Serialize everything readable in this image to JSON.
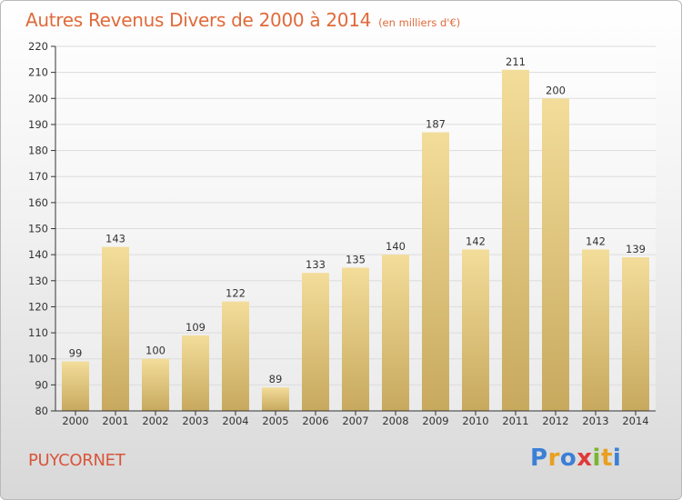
{
  "header": {
    "title": "Autres Revenus Divers de 2000 à 2014",
    "unit": "(en milliers d'€)"
  },
  "footer": {
    "commune": "PUYCORNET",
    "brand_letters": [
      {
        "char": "P",
        "color": "#3b7fd6"
      },
      {
        "char": "r",
        "color": "#e8a020"
      },
      {
        "char": "o",
        "color": "#3b7fd6"
      },
      {
        "char": "x",
        "color": "#e03a3a"
      },
      {
        "char": "i",
        "color": "#7ab530"
      },
      {
        "char": "t",
        "color": "#e8a020"
      },
      {
        "char": "i",
        "color": "#3b7fd6"
      }
    ]
  },
  "colors": {
    "bar_top": "#f3dd9a",
    "bar_bottom": "#c7a95e",
    "title": "#e06a3a",
    "grid": "#dcdcdc"
  },
  "chart_data": {
    "type": "bar",
    "title": "Autres Revenus Divers de 2000 à 2014",
    "subtitle": "(en milliers d'€)",
    "xlabel": "",
    "ylabel": "",
    "categories": [
      "2000",
      "2001",
      "2002",
      "2003",
      "2004",
      "2005",
      "2006",
      "2007",
      "2008",
      "2009",
      "2010",
      "2011",
      "2012",
      "2013",
      "2014"
    ],
    "values": [
      99,
      143,
      100,
      109,
      122,
      89,
      133,
      135,
      140,
      187,
      142,
      211,
      200,
      142,
      139
    ],
    "ylim": [
      80,
      220
    ],
    "yticks": [
      80,
      90,
      100,
      110,
      120,
      130,
      140,
      150,
      160,
      170,
      180,
      190,
      200,
      210,
      220
    ],
    "grid": true,
    "legend": "none",
    "data_labels": true
  }
}
